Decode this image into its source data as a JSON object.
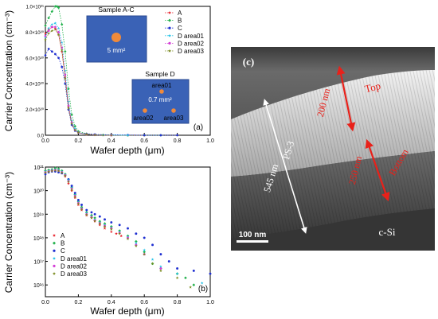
{
  "chart_data": [
    {
      "type": "scatter",
      "panel_label": "(a)",
      "ylabel": "Carrier Concentration (cm⁻³)",
      "xlabel": "Wafer depth (μm)",
      "xlim": [
        0,
        1.0
      ],
      "ylim": [
        0,
        1e+21
      ],
      "xticks": [
        "0.0",
        "0.2",
        "0.4",
        "0.6",
        "0.8",
        "1.0"
      ],
      "yticks": [
        {
          "v": 0,
          "t": "0.0"
        },
        {
          "v": 2e+20,
          "t": "2.0×10²⁰"
        },
        {
          "v": 4e+20,
          "t": "4.0×10²⁰"
        },
        {
          "v": 6e+20,
          "t": "6.0×10²⁰"
        },
        {
          "v": 8e+20,
          "t": "8.0×10²⁰"
        },
        {
          "v": 1e+21,
          "t": "1.0×10²¹"
        }
      ],
      "legend_position": "top-right",
      "series": [
        {
          "name": "A",
          "color": "#e8212b",
          "shape": "star",
          "x": [
            0.0,
            0.02,
            0.04,
            0.06,
            0.08,
            0.1,
            0.12,
            0.14,
            0.16,
            0.18,
            0.2,
            0.25,
            0.3,
            0.35,
            0.4,
            0.5,
            0.6
          ],
          "y": [
            7.9e+20,
            8.2e+20,
            8.4e+20,
            8.3e+20,
            7.8e+20,
            6.5e+20,
            4.5e+20,
            2.2e+20,
            9e+19,
            4e+19,
            2e+19,
            8e+18,
            3e+18,
            1e+18,
            0,
            0,
            0
          ]
        },
        {
          "name": "B",
          "color": "#22b14c",
          "shape": "diamond",
          "x": [
            0.0,
            0.02,
            0.04,
            0.06,
            0.07,
            0.08,
            0.1,
            0.12,
            0.14,
            0.16,
            0.18,
            0.2,
            0.25,
            0.3,
            0.35,
            0.4,
            0.5,
            0.6,
            0.7
          ],
          "y": [
            8.5e+20,
            9.1e+20,
            9.6e+20,
            1e+21,
            1e+21,
            9.9e+20,
            8.6e+20,
            6.5e+20,
            3.6e+20,
            1.6e+20,
            7e+19,
            3e+19,
            1.2e+19,
            5e+18,
            2e+18,
            1e+18,
            0,
            0,
            0
          ]
        },
        {
          "name": "C",
          "color": "#1f2fd1",
          "shape": "circle",
          "x": [
            0.0,
            0.02,
            0.04,
            0.06,
            0.08,
            0.1,
            0.12,
            0.14,
            0.16,
            0.18,
            0.2,
            0.25,
            0.3,
            0.4,
            0.5,
            0.6,
            0.7,
            0.8
          ],
          "y": [
            6.2e+20,
            6.7e+20,
            6.5e+20,
            6.3e+20,
            6e+20,
            5.3e+20,
            4e+20,
            2e+20,
            8e+19,
            3.5e+19,
            2e+19,
            1e+19,
            6e+18,
            3e+18,
            2e+18,
            0,
            0,
            0
          ]
        },
        {
          "name": "D area01",
          "color": "#27c4e8",
          "shape": "star",
          "x": [
            0.0,
            0.02,
            0.04,
            0.06,
            0.08,
            0.1,
            0.12,
            0.14,
            0.16,
            0.18,
            0.2,
            0.25,
            0.3,
            0.4,
            0.5
          ],
          "y": [
            7.6e+20,
            8.3e+20,
            8.6e+20,
            8.7e+20,
            8.3e+20,
            7.2e+20,
            5e+20,
            2.6e+20,
            1.1e+20,
            5e+19,
            2e+19,
            8e+18,
            3e+18,
            1e+18,
            0
          ]
        },
        {
          "name": "D area02",
          "color": "#d43fd6",
          "shape": "circle",
          "x": [
            0.0,
            0.02,
            0.04,
            0.06,
            0.08,
            0.1,
            0.12,
            0.14,
            0.16,
            0.18,
            0.2,
            0.25,
            0.3,
            0.4
          ],
          "y": [
            7.7e+20,
            8.1e+20,
            8.4e+20,
            8.4e+20,
            8e+20,
            6.8e+20,
            4.7e+20,
            2.3e+20,
            1e+20,
            4e+19,
            2e+19,
            7e+18,
            2e+18,
            0
          ]
        },
        {
          "name": "D area03",
          "color": "#7a8a1e",
          "shape": "star",
          "x": [
            0.0,
            0.02,
            0.04,
            0.06,
            0.08,
            0.1,
            0.12,
            0.14,
            0.16,
            0.18,
            0.2,
            0.25,
            0.3,
            0.4
          ],
          "y": [
            7.4e+20,
            7.9e+20,
            8.1e+20,
            8.2e+20,
            7.8e+20,
            6.6e+20,
            4.4e+20,
            2.1e+20,
            9e+19,
            4e+19,
            2e+19,
            7e+18,
            2e+18,
            0
          ]
        }
      ],
      "insets": [
        {
          "title": "Sample A-C",
          "spots": [
            {
              "label": "5 mm²"
            }
          ]
        },
        {
          "title": "Sample D",
          "spots": [
            {
              "label": "area01"
            },
            {
              "label": "0.7 mm²"
            },
            {
              "label": "area02"
            },
            {
              "label": "area03"
            }
          ]
        }
      ]
    },
    {
      "type": "scatter",
      "panel_label": "(b)",
      "ylabel": "Carrier Concentration (cm⁻³)",
      "xlabel": "Wafer depth (μm)",
      "xlim": [
        0,
        1.0
      ],
      "yscale": "log",
      "ylim_log10": [
        15.5,
        21
      ],
      "xticks": [
        "0.0",
        "0.2",
        "0.4",
        "0.6",
        "0.8",
        "1.0"
      ],
      "yticks": [
        {
          "e": 16,
          "t": "10¹⁶"
        },
        {
          "e": 17,
          "t": "10¹⁷"
        },
        {
          "e": 18,
          "t": "10¹⁸"
        },
        {
          "e": 19,
          "t": "10¹⁹"
        },
        {
          "e": 20,
          "t": "10²⁰"
        },
        {
          "e": 21,
          "t": "10²¹"
        }
      ],
      "legend_position": "bottom-left",
      "series": [
        {
          "name": "A",
          "color": "#e8212b",
          "shape": "star",
          "x": [
            0.0,
            0.02,
            0.04,
            0.06,
            0.08,
            0.1,
            0.12,
            0.14,
            0.16,
            0.18,
            0.2,
            0.22,
            0.25,
            0.28,
            0.3,
            0.33,
            0.36,
            0.4,
            0.43,
            0.46
          ],
          "y": [
            6e+20,
            6.5e+20,
            7e+20,
            7e+20,
            6.5e+20,
            5.5e+20,
            4e+20,
            2e+20,
            1e+20,
            5e+19,
            2.5e+19,
            1.5e+19,
            9e+18,
            7e+18,
            5e+18,
            3.5e+18,
            2.5e+18,
            1.8e+18,
            1.5e+18,
            1.2e+18
          ]
        },
        {
          "name": "B",
          "color": "#22b14c",
          "shape": "diamond",
          "x": [
            0.0,
            0.02,
            0.04,
            0.06,
            0.08,
            0.1,
            0.12,
            0.14,
            0.16,
            0.18,
            0.2,
            0.22,
            0.25,
            0.28,
            0.3,
            0.33,
            0.36,
            0.4,
            0.45,
            0.5,
            0.55,
            0.6,
            0.65,
            0.7,
            0.8,
            0.85,
            0.9
          ],
          "y": [
            7e+20,
            7.5e+20,
            8e+20,
            9e+20,
            8.5e+20,
            7e+20,
            5e+20,
            3e+20,
            1.4e+20,
            7e+19,
            3.5e+19,
            2e+19,
            1.2e+19,
            9e+18,
            7e+18,
            5e+18,
            4e+18,
            3e+18,
            2e+18,
            1.2e+18,
            7e+17,
            2.5e+17,
            8e+16,
            5e+16,
            3e+16,
            2e+16,
            1e+16
          ]
        },
        {
          "name": "C",
          "color": "#1f2fd1",
          "shape": "circle",
          "x": [
            0.0,
            0.02,
            0.04,
            0.06,
            0.08,
            0.1,
            0.12,
            0.14,
            0.16,
            0.18,
            0.2,
            0.22,
            0.25,
            0.28,
            0.3,
            0.33,
            0.36,
            0.4,
            0.45,
            0.5,
            0.55,
            0.6,
            0.65,
            0.7,
            0.75,
            0.8,
            0.9,
            1.0
          ],
          "y": [
            5e+20,
            6e+20,
            6.5e+20,
            6.5e+20,
            6e+20,
            5.5e+20,
            4.5e+20,
            3e+20,
            1.6e+20,
            8e+19,
            4e+19,
            2.5e+19,
            1.5e+19,
            1.2e+19,
            1e+19,
            8e+18,
            6e+18,
            4.5e+18,
            3.5e+18,
            2.5e+18,
            1.5e+18,
            1e+18,
            5e+17,
            2e+17,
            1e+17,
            5e+16,
            4e+16,
            3e+16
          ]
        },
        {
          "name": "D area01",
          "color": "#27c4e8",
          "shape": "star",
          "x": [
            0.0,
            0.02,
            0.04,
            0.06,
            0.08,
            0.1,
            0.12,
            0.14,
            0.16,
            0.18,
            0.2,
            0.22,
            0.25,
            0.28,
            0.3,
            0.33,
            0.36,
            0.4,
            0.45,
            0.5,
            0.55,
            0.6,
            0.65,
            0.7,
            0.8,
            0.95
          ],
          "y": [
            6.5e+20,
            7e+20,
            7.5e+20,
            8e+20,
            7.5e+20,
            6.5e+20,
            4.8e+20,
            2.8e+20,
            1.3e+20,
            6.5e+19,
            3.2e+19,
            1.8e+19,
            1.1e+19,
            8e+18,
            6e+18,
            4.5e+18,
            3.5e+18,
            2.7e+18,
            1.8e+18,
            1.1e+18,
            6e+17,
            3e+17,
            1.2e+17,
            6e+16,
            3e+16,
            1.2e+16
          ]
        },
        {
          "name": "D area02",
          "color": "#d43fd6",
          "shape": "circle",
          "x": [
            0.0,
            0.02,
            0.04,
            0.06,
            0.08,
            0.1,
            0.12,
            0.14,
            0.16,
            0.18,
            0.2,
            0.22,
            0.25,
            0.28,
            0.3,
            0.33,
            0.36,
            0.4,
            0.45,
            0.5,
            0.55,
            0.6,
            0.7
          ],
          "y": [
            6e+20,
            6.5e+20,
            7e+20,
            7.5e+20,
            7e+20,
            6e+20,
            4.5e+20,
            2.5e+20,
            1.2e+20,
            6e+19,
            3e+19,
            1.7e+19,
            1e+19,
            7.5e+18,
            5.5e+18,
            4.2e+18,
            3.2e+18,
            2.5e+18,
            1.6e+18,
            1e+18,
            5e+17,
            2e+17,
            5e+16
          ]
        },
        {
          "name": "D area03",
          "color": "#7a8a1e",
          "shape": "star",
          "x": [
            0.0,
            0.02,
            0.04,
            0.06,
            0.08,
            0.1,
            0.12,
            0.14,
            0.16,
            0.18,
            0.2,
            0.22,
            0.25,
            0.28,
            0.3,
            0.33,
            0.36,
            0.4,
            0.45,
            0.5,
            0.55,
            0.6,
            0.65,
            0.7,
            0.8,
            0.88
          ],
          "y": [
            5.8e+20,
            6.3e+20,
            6.8e+20,
            7.2e+20,
            6.8e+20,
            5.8e+20,
            4.3e+20,
            2.4e+20,
            1.1e+20,
            5.5e+19,
            2.8e+19,
            1.6e+19,
            9.5e+18,
            7e+18,
            5.2e+18,
            4e+18,
            3e+18,
            2.3e+18,
            1.5e+18,
            9e+17,
            4.5e+17,
            2e+17,
            8e+16,
            4e+16,
            2e+16,
            8000000000000000.0
          ]
        }
      ]
    }
  ],
  "micrograph": {
    "panel_label": "(c)",
    "top_label": "Top",
    "top_dim": "200 nm",
    "bottom_label": "Bottom",
    "bottom_dim": "250 nm",
    "total_dim": "545 nm",
    "layer_label": "PS-3",
    "substrate_label": "c-Si",
    "scale_bar": "100 nm"
  }
}
